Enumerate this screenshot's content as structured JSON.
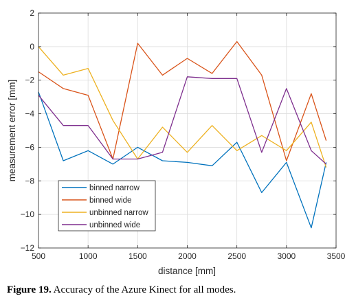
{
  "chart_data": {
    "type": "line",
    "xlabel": "distance [mm]",
    "ylabel": "measurement error [mm]",
    "xlim": [
      500,
      3500
    ],
    "ylim": [
      -12,
      2
    ],
    "x_ticks": [
      500,
      1000,
      1500,
      2000,
      2500,
      3000,
      3500
    ],
    "y_ticks": [
      -12,
      -10,
      -8,
      -6,
      -4,
      -2,
      0,
      2
    ],
    "x_tick_labels": [
      "500",
      "1000",
      "1500",
      "2000",
      "2500",
      "3000",
      "3500"
    ],
    "y_tick_labels": [
      "−12",
      "−10",
      "−8",
      "−6",
      "−4",
      "−2",
      "0",
      "2"
    ],
    "grid": true,
    "legend_position": "lower-left",
    "x": [
      500,
      750,
      1000,
      1250,
      1500,
      1750,
      2000,
      2250,
      2500,
      2750,
      3000,
      3250,
      3400
    ],
    "series": [
      {
        "name": "binned narrow",
        "color": "#0072BD",
        "values": [
          -2.7,
          -6.8,
          -6.2,
          -7.0,
          -6.0,
          -6.8,
          -6.9,
          -7.1,
          -5.7,
          -8.7,
          -6.9,
          -10.8,
          -6.9
        ]
      },
      {
        "name": "binned wide",
        "color": "#D95319",
        "values": [
          -1.5,
          -2.5,
          -2.9,
          -6.7,
          0.2,
          -1.7,
          -0.7,
          -1.6,
          0.3,
          -1.7,
          -6.8,
          -2.8,
          -5.6
        ]
      },
      {
        "name": "unbinned narrow",
        "color": "#EDB120",
        "values": [
          0.0,
          -1.7,
          -1.3,
          -4.4,
          -6.7,
          -4.8,
          -6.3,
          -4.7,
          -6.2,
          -5.3,
          -6.2,
          -4.5,
          -7.2
        ]
      },
      {
        "name": "unbinned wide",
        "color": "#7E2F8E",
        "values": [
          -2.9,
          -4.7,
          -4.7,
          -6.7,
          -6.7,
          -6.3,
          -1.8,
          -1.9,
          -1.9,
          -6.3,
          -2.5,
          -6.2,
          -7.0
        ]
      }
    ]
  },
  "caption": {
    "label": "Figure 19.",
    "text": " Accuracy of the Azure Kinect for all modes."
  }
}
